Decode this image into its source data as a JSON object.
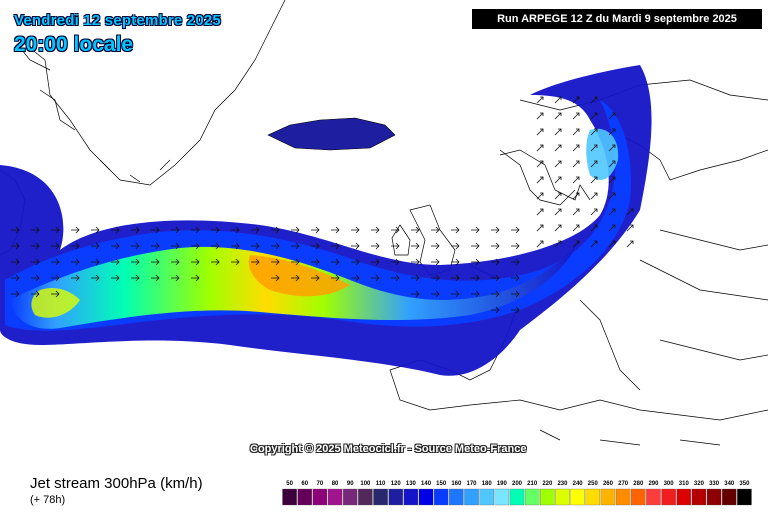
{
  "header": {
    "date_label": "Vendredi 12 septembre 2025",
    "time_label": "20:00 locale",
    "run_label": "Run ARPEGE 12 Z du Mardi 9 septembre 2025"
  },
  "map": {
    "copyright": "Copyright © 2025 Meteocicl.fr - Source Meteo-France",
    "colors": {
      "land_border": "#000000",
      "ocean": "#ffffff",
      "jet_weak": "#0000c8",
      "jet_mid": "#00a0ff",
      "jet_strong": "#a0ff00",
      "jet_core": "#ffa000"
    },
    "arrow_icon": "wind-direction-arrow-icon"
  },
  "footer": {
    "product": "Jet stream 300hPa (km/h)",
    "lead_time": "(+ 78h)"
  },
  "legend": {
    "unit": "km/h",
    "labels": [
      "50",
      "60",
      "70",
      "80",
      "90",
      "100",
      "110",
      "120",
      "130",
      "140",
      "150",
      "160",
      "170",
      "180",
      "190",
      "200",
      "210",
      "220",
      "230",
      "240",
      "250",
      "260",
      "270",
      "280",
      "290",
      "300",
      "310",
      "320",
      "330",
      "340",
      "350"
    ],
    "colors": [
      "#3c003c",
      "#64005a",
      "#8c0078",
      "#a0148c",
      "#782878",
      "#50285a",
      "#28286e",
      "#1e1ea0",
      "#1414c8",
      "#0000e6",
      "#0a3cff",
      "#1e78ff",
      "#32a0ff",
      "#50c8ff",
      "#78e6ff",
      "#00ffb4",
      "#64ff64",
      "#a0ff00",
      "#dcff00",
      "#ffff00",
      "#ffdc00",
      "#ffb400",
      "#ff8c00",
      "#ff6400",
      "#ff3c3c",
      "#f01e1e",
      "#dc0000",
      "#b40000",
      "#8c0000",
      "#640000",
      "#000000"
    ]
  }
}
